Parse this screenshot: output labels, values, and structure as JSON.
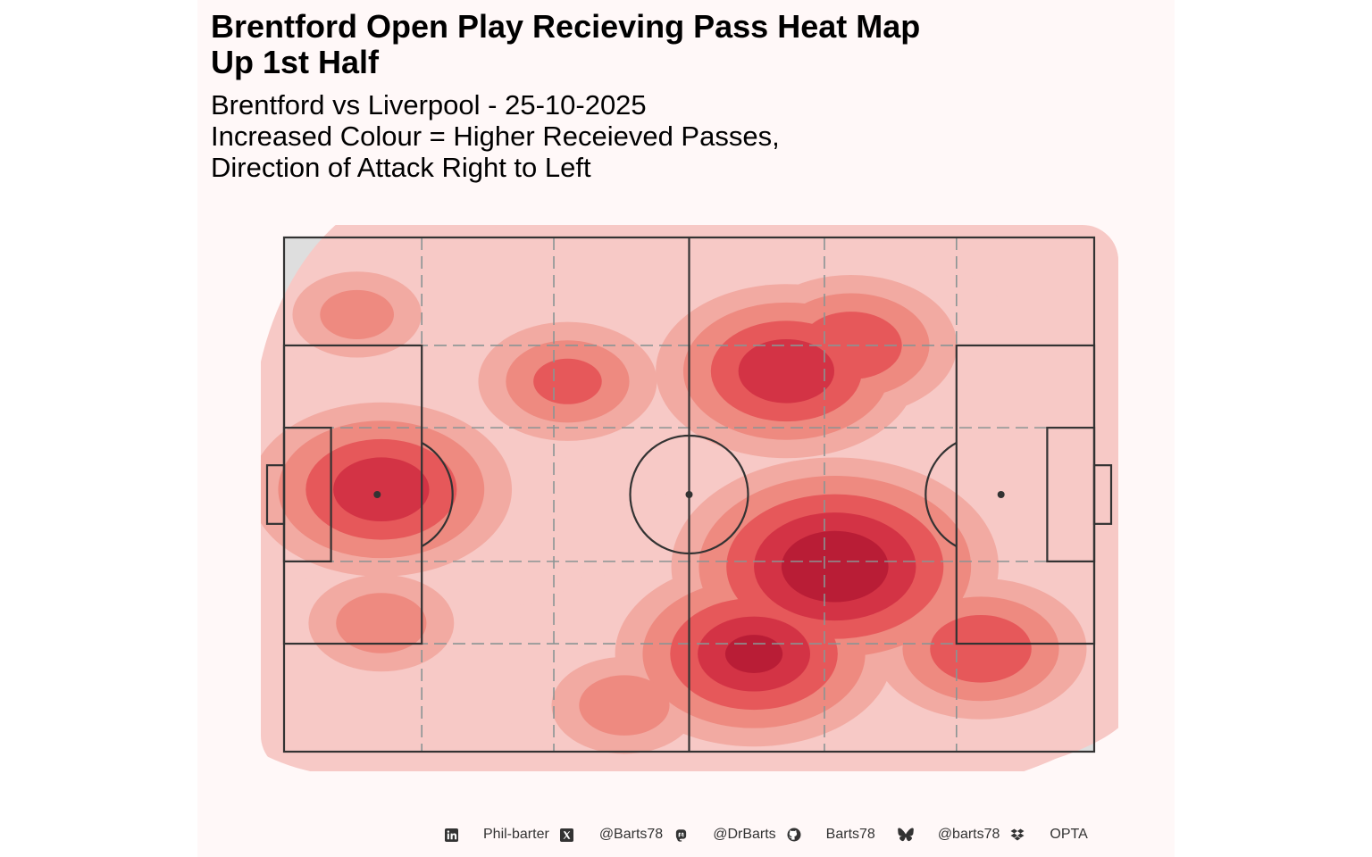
{
  "title_line1": "Brentford Open Play Recieving Pass Heat Map",
  "title_line2": "Up 1st Half",
  "subtitle_line1": "Brentford vs Liverpool - 25-10-2025",
  "subtitle_line2": "Increased Colour = Higher Receieved Passes,",
  "subtitle_line3": "Direction of Attack Right to Left",
  "colors": {
    "background": "#fff8f8",
    "pitch_fill": "#dedede",
    "pitch_lines": "#333333",
    "zone_lines": "#8a9494",
    "heat_levels": [
      "#f7c9c6",
      "#f2aaa2",
      "#ee8a80",
      "#e6585a",
      "#d33345",
      "#b91d36"
    ]
  },
  "footer": [
    {
      "icon": "linkedin-icon",
      "label": "Phil-barter"
    },
    {
      "icon": "x-icon",
      "label": "@Barts78"
    },
    {
      "icon": "mastodon-icon",
      "label": "@DrBarts"
    },
    {
      "icon": "github-icon",
      "label": "Barts78"
    },
    {
      "icon": "bluesky-icon",
      "label": "@barts78"
    },
    {
      "icon": "dropbox-icon",
      "label": "OPTA"
    }
  ],
  "chart_data": {
    "type": "heatmap",
    "subject": "open play received passes density",
    "pitch": {
      "length": 100,
      "width": 100,
      "attack_direction": "right-to-left"
    },
    "density_levels": 6,
    "hotspots": [
      {
        "x": 68,
        "y": 64,
        "intensity": 1.0
      },
      {
        "x": 58,
        "y": 81,
        "intensity": 0.85
      },
      {
        "x": 12,
        "y": 49,
        "intensity": 0.8
      },
      {
        "x": 62,
        "y": 26,
        "intensity": 0.8
      },
      {
        "x": 86,
        "y": 80,
        "intensity": 0.65
      },
      {
        "x": 70,
        "y": 21,
        "intensity": 0.65
      },
      {
        "x": 35,
        "y": 28,
        "intensity": 0.55
      },
      {
        "x": 12,
        "y": 75,
        "intensity": 0.45
      },
      {
        "x": 42,
        "y": 91,
        "intensity": 0.45
      },
      {
        "x": 9,
        "y": 15,
        "intensity": 0.4
      }
    ]
  }
}
